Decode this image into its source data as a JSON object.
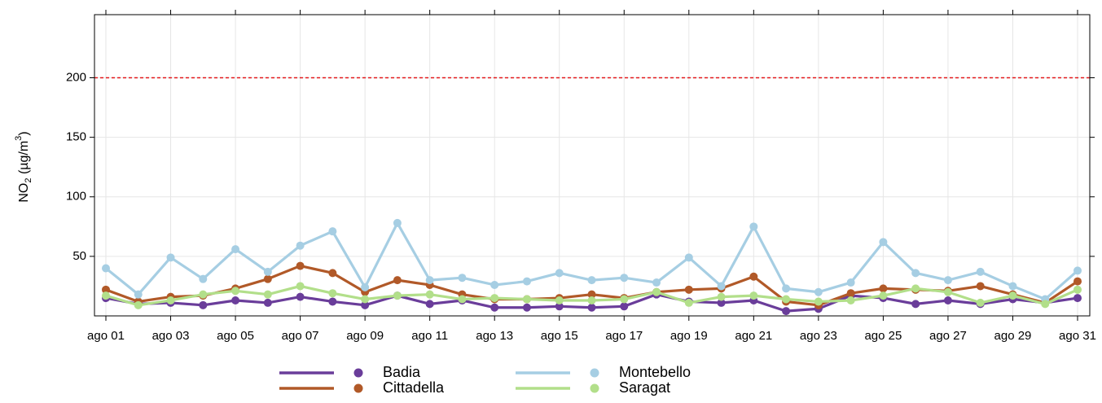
{
  "chart_data": {
    "type": "line",
    "ylabel": [
      "NO",
      "2",
      " (µg/m",
      "3",
      ")"
    ],
    "categories": [
      "ago 01",
      null,
      "ago 03",
      null,
      "ago 05",
      null,
      "ago 07",
      null,
      "ago 09",
      null,
      "ago 11",
      null,
      "ago 13",
      null,
      "ago 15",
      null,
      "ago 17",
      null,
      "ago 19",
      null,
      "ago 21",
      null,
      "ago 23",
      null,
      "ago 25",
      null,
      "ago 27",
      null,
      "ago 29",
      null,
      "ago 31"
    ],
    "series": [
      {
        "name": "Badia",
        "color": "#6a3d9a",
        "values": [
          15,
          10,
          11,
          9,
          13,
          11,
          16,
          12,
          9,
          17,
          10,
          13,
          7,
          7,
          8,
          7,
          8,
          18,
          12,
          11,
          13,
          4,
          6,
          17,
          15,
          10,
          13,
          10,
          14,
          11,
          15
        ]
      },
      {
        "name": "Cittadella",
        "color": "#b15928",
        "values": [
          22,
          12,
          16,
          17,
          23,
          31,
          42,
          36,
          20,
          30,
          26,
          18,
          14,
          14,
          15,
          18,
          15,
          20,
          22,
          23,
          33,
          12,
          9,
          19,
          23,
          22,
          21,
          25,
          18,
          11,
          29
        ]
      },
      {
        "name": "Montebello",
        "color": "#a6cee3",
        "values": [
          40,
          18,
          49,
          31,
          56,
          37,
          59,
          71,
          24,
          78,
          30,
          32,
          26,
          29,
          36,
          30,
          32,
          28,
          49,
          25,
          75,
          23,
          20,
          28,
          62,
          36,
          30,
          37,
          25,
          14,
          38
        ]
      },
      {
        "name": "Saragat",
        "color": "#b2df8a",
        "values": [
          17,
          9,
          13,
          18,
          21,
          18,
          25,
          19,
          14,
          17,
          18,
          14,
          15,
          14,
          13,
          13,
          14,
          20,
          11,
          16,
          17,
          14,
          12,
          13,
          17,
          23,
          20,
          11,
          17,
          10,
          22
        ]
      }
    ],
    "ylim": [
      0,
      253
    ],
    "yticks": [
      50,
      100,
      150,
      200
    ],
    "grid": true,
    "hline": 200,
    "hline_color": "#e31a1c",
    "legend": "bottom"
  }
}
